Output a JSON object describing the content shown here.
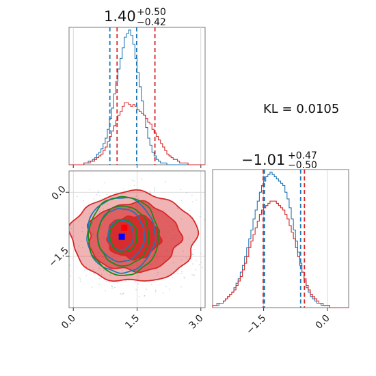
{
  "colors": {
    "blue": "#1f77b4",
    "red": "#d62728",
    "green": "#1a8a1a",
    "marker_blue": "#0000ff",
    "marker_red": "#ff0000"
  },
  "annotation": {
    "kl_text": "KL = 0.0105"
  },
  "chart_data": [
    {
      "type": "histogram",
      "panel": "top-left",
      "title": {
        "main": "1.40",
        "plus": "+0.50",
        "minus": "−0.42"
      },
      "xlim": [
        -0.1,
        3.1
      ],
      "grid": true,
      "bin_width": 0.05,
      "bin_start": -0.1,
      "series": [
        {
          "name": "",
          "color_key": "blue",
          "counts": [
            0,
            0,
            0,
            0,
            0,
            0,
            0,
            1,
            1,
            2,
            2,
            3,
            4,
            6,
            7,
            9,
            12,
            15,
            20,
            26,
            32,
            40,
            47,
            54,
            60,
            66,
            72,
            74,
            76,
            73,
            68,
            60,
            52,
            44,
            36,
            28,
            21,
            15,
            11,
            7,
            5,
            3,
            2,
            1,
            1,
            1,
            0,
            0,
            0,
            0,
            0,
            0,
            0,
            0,
            0,
            0,
            0,
            0,
            0,
            0,
            0,
            0,
            0,
            0
          ]
        },
        {
          "name": "",
          "color_key": "red",
          "counts": [
            0,
            0,
            0,
            0,
            0,
            0,
            0,
            1,
            1,
            1,
            2,
            2,
            3,
            4,
            5,
            6,
            8,
            10,
            13,
            16,
            19,
            22,
            25,
            28,
            30,
            33,
            35,
            35,
            34,
            33,
            34,
            33,
            31,
            30,
            29,
            28,
            26,
            24,
            23,
            20,
            18,
            16,
            14,
            12,
            10,
            8,
            6,
            5,
            4,
            3,
            3,
            2,
            1,
            1,
            1,
            1,
            0,
            0,
            0,
            0,
            0,
            0,
            0,
            0
          ]
        }
      ],
      "quantile_lines": [
        {
          "series": "blue",
          "x": [
            0.86,
            1.49
          ]
        },
        {
          "series": "red",
          "x": [
            1.03,
            1.92
          ]
        }
      ]
    },
    {
      "type": "contour",
      "panel": "bottom-left",
      "xlim": [
        -0.1,
        3.1
      ],
      "ylim": [
        -2.7,
        0.5
      ],
      "grid": true,
      "x_ticks": [
        {
          "v": 0.0,
          "label": "0.0"
        },
        {
          "v": 1.5,
          "label": "1.5"
        },
        {
          "v": 3.0,
          "label": "3.0"
        }
      ],
      "y_ticks": [
        {
          "v": 0.0,
          "label": "0.0"
        },
        {
          "v": -1.5,
          "label": "−1.5"
        }
      ],
      "contours": [
        {
          "color_key": "red",
          "filled": true,
          "cx": 1.42,
          "cy": -1.05,
          "rx": [
            1.48,
            1.08,
            0.62
          ],
          "ry": [
            1.05,
            0.8,
            0.5
          ]
        },
        {
          "color_key": "blue",
          "filled": false,
          "cx": 1.12,
          "cy": -1.0,
          "rx": [
            0.8,
            0.55,
            0.3
          ],
          "ry": [
            0.88,
            0.62,
            0.35
          ]
        },
        {
          "color_key": "green",
          "filled": false,
          "cx": 1.18,
          "cy": -1.02,
          "rx": [
            0.82,
            0.6,
            0.32
          ],
          "ry": [
            0.92,
            0.7,
            0.38
          ]
        }
      ],
      "markers": [
        {
          "color_key": "marker_red",
          "x": 1.2,
          "y": -0.83
        },
        {
          "color_key": "marker_blue",
          "x": 1.14,
          "y": -1.04
        }
      ]
    },
    {
      "type": "histogram",
      "panel": "bottom-right",
      "title": {
        "main": "−1.01",
        "plus": "+0.47",
        "minus": "−0.50"
      },
      "xlim": [
        -2.7,
        0.5
      ],
      "grid": true,
      "x_ticks": [
        {
          "v": -1.5,
          "label": "−1.5"
        },
        {
          "v": 0.0,
          "label": "0.0"
        }
      ],
      "bin_width": 0.05,
      "bin_start": -2.7,
      "series": [
        {
          "name": "",
          "color_key": "blue",
          "counts": [
            1,
            1,
            1,
            2,
            2,
            3,
            4,
            5,
            6,
            7,
            9,
            11,
            13,
            16,
            19,
            23,
            27,
            31,
            35,
            40,
            44,
            48,
            52,
            55,
            57,
            59,
            60,
            61,
            60,
            59,
            58,
            57,
            56,
            55,
            52,
            49,
            45,
            40,
            35,
            30,
            25,
            20,
            16,
            12,
            9,
            7,
            5,
            4,
            3,
            2,
            2,
            1,
            1,
            1,
            1,
            0,
            0,
            0,
            0,
            0,
            0,
            0,
            0,
            0
          ]
        },
        {
          "name": "",
          "color_key": "red",
          "counts": [
            1,
            1,
            2,
            2,
            2,
            3,
            4,
            5,
            6,
            7,
            8,
            10,
            12,
            14,
            17,
            20,
            23,
            27,
            30,
            33,
            36,
            39,
            42,
            44,
            45,
            46,
            47,
            48,
            48,
            48,
            47,
            46,
            45,
            44,
            42,
            40,
            37,
            34,
            31,
            27,
            23,
            19,
            16,
            13,
            10,
            8,
            6,
            5,
            4,
            3,
            2,
            2,
            1,
            1,
            1,
            0,
            0,
            0,
            0,
            0,
            0,
            0,
            0,
            0
          ]
        }
      ],
      "quantile_lines": [
        {
          "series": "red",
          "x": [
            -1.51,
            -0.54
          ]
        },
        {
          "series": "blue",
          "x": [
            -1.48,
            -0.63
          ]
        }
      ]
    }
  ]
}
